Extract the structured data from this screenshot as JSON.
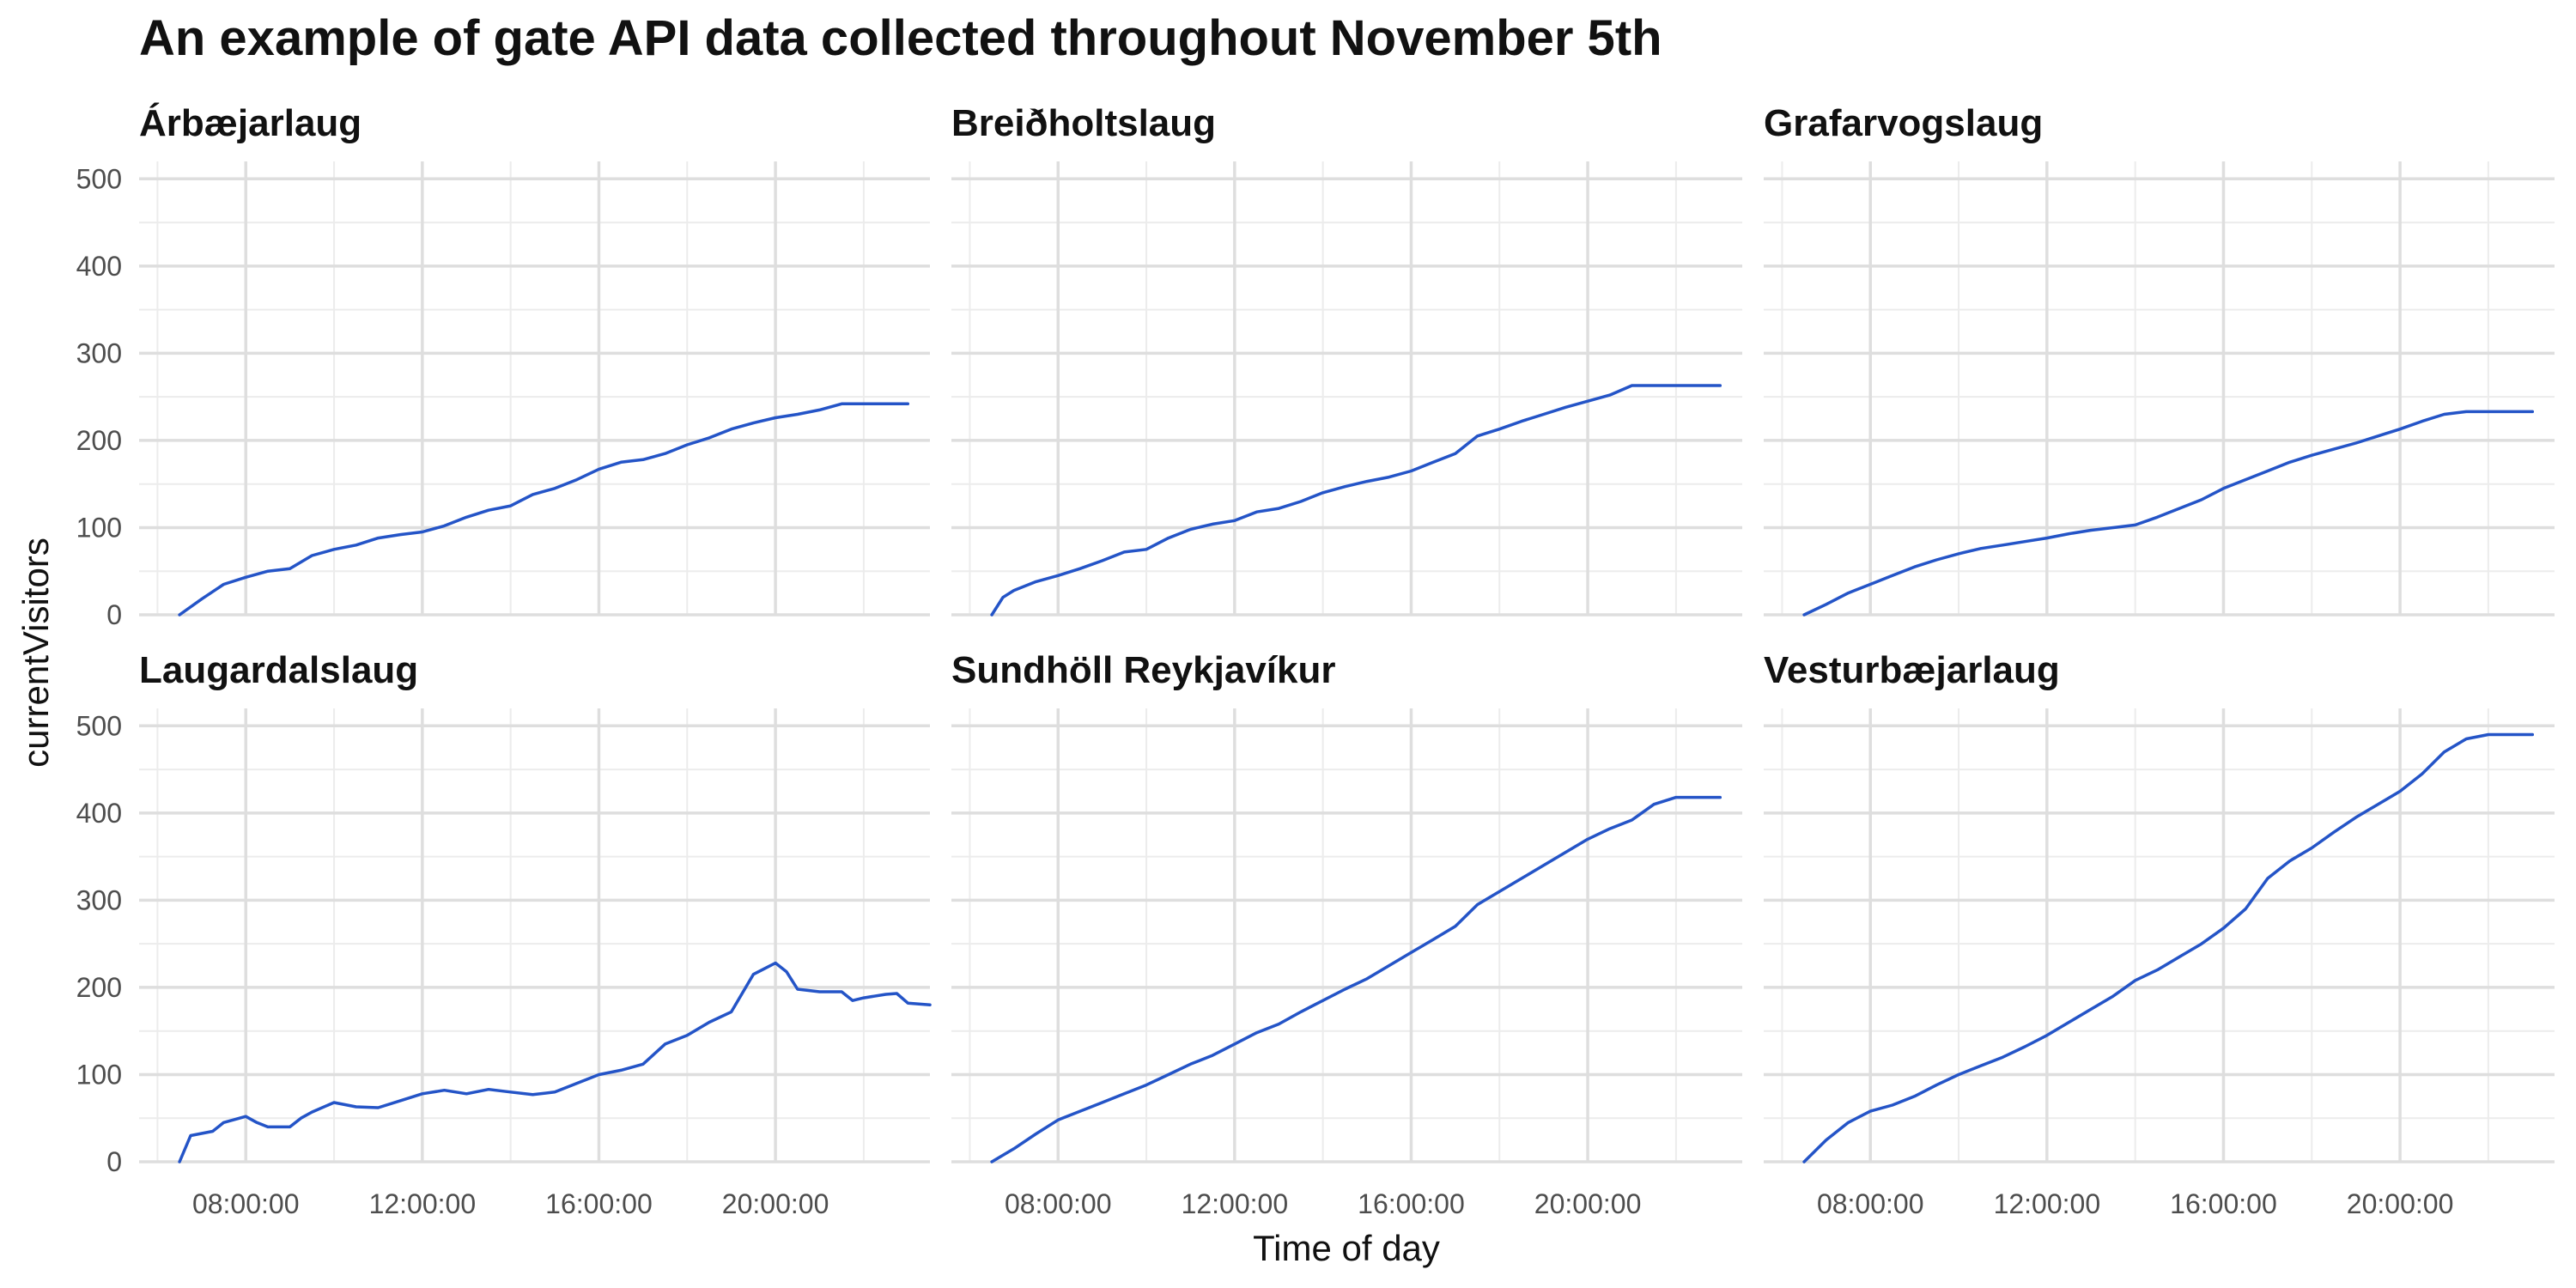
{
  "chart_data": {
    "type": "line",
    "title": "An example of gate API data collected throughout November 5th",
    "xlabel": "Time of day",
    "ylabel": "currentVisitors",
    "x_ticks": [
      "08:00:00",
      "12:00:00",
      "16:00:00",
      "20:00:00"
    ],
    "y_ticks": [
      0,
      100,
      200,
      300,
      400,
      500
    ],
    "xlim": [
      "05:35:00",
      "23:30:00"
    ],
    "ylim": [
      0,
      520
    ],
    "grid": true,
    "line_color": "#2454c7",
    "facets": [
      {
        "name": "Árbæjarlaug",
        "points": [
          [
            "06:30",
            0
          ],
          [
            "07:00",
            18
          ],
          [
            "07:30",
            35
          ],
          [
            "08:00",
            43
          ],
          [
            "08:30",
            50
          ],
          [
            "09:00",
            53
          ],
          [
            "09:30",
            68
          ],
          [
            "10:00",
            75
          ],
          [
            "10:30",
            80
          ],
          [
            "11:00",
            88
          ],
          [
            "11:30",
            92
          ],
          [
            "12:00",
            95
          ],
          [
            "12:30",
            102
          ],
          [
            "13:00",
            112
          ],
          [
            "13:30",
            120
          ],
          [
            "14:00",
            125
          ],
          [
            "14:30",
            138
          ],
          [
            "15:00",
            145
          ],
          [
            "15:30",
            155
          ],
          [
            "16:00",
            167
          ],
          [
            "16:30",
            175
          ],
          [
            "17:00",
            178
          ],
          [
            "17:30",
            185
          ],
          [
            "18:00",
            195
          ],
          [
            "18:30",
            203
          ],
          [
            "19:00",
            213
          ],
          [
            "19:30",
            220
          ],
          [
            "20:00",
            226
          ],
          [
            "20:30",
            230
          ],
          [
            "21:00",
            235
          ],
          [
            "21:30",
            242
          ],
          [
            "22:00",
            242
          ],
          [
            "23:00",
            242
          ]
        ]
      },
      {
        "name": "Breiðholtslaug",
        "points": [
          [
            "06:30",
            0
          ],
          [
            "06:45",
            20
          ],
          [
            "07:00",
            28
          ],
          [
            "07:30",
            38
          ],
          [
            "08:00",
            45
          ],
          [
            "08:30",
            53
          ],
          [
            "09:00",
            62
          ],
          [
            "09:30",
            72
          ],
          [
            "10:00",
            75
          ],
          [
            "10:30",
            88
          ],
          [
            "11:00",
            98
          ],
          [
            "11:30",
            104
          ],
          [
            "12:00",
            108
          ],
          [
            "12:30",
            118
          ],
          [
            "13:00",
            122
          ],
          [
            "13:30",
            130
          ],
          [
            "14:00",
            140
          ],
          [
            "14:30",
            147
          ],
          [
            "15:00",
            153
          ],
          [
            "15:30",
            158
          ],
          [
            "16:00",
            165
          ],
          [
            "16:30",
            175
          ],
          [
            "17:00",
            185
          ],
          [
            "17:30",
            205
          ],
          [
            "18:00",
            213
          ],
          [
            "18:30",
            222
          ],
          [
            "19:00",
            230
          ],
          [
            "19:30",
            238
          ],
          [
            "20:00",
            245
          ],
          [
            "20:30",
            252
          ],
          [
            "21:00",
            263
          ],
          [
            "22:00",
            263
          ],
          [
            "23:00",
            263
          ]
        ]
      },
      {
        "name": "Grafarvogslaug",
        "points": [
          [
            "06:30",
            0
          ],
          [
            "07:00",
            12
          ],
          [
            "07:30",
            25
          ],
          [
            "08:00",
            35
          ],
          [
            "08:30",
            45
          ],
          [
            "09:00",
            55
          ],
          [
            "09:30",
            63
          ],
          [
            "10:00",
            70
          ],
          [
            "10:30",
            76
          ],
          [
            "11:00",
            80
          ],
          [
            "11:30",
            84
          ],
          [
            "12:00",
            88
          ],
          [
            "12:30",
            93
          ],
          [
            "13:00",
            97
          ],
          [
            "13:30",
            100
          ],
          [
            "14:00",
            103
          ],
          [
            "14:30",
            112
          ],
          [
            "15:00",
            122
          ],
          [
            "15:30",
            132
          ],
          [
            "16:00",
            145
          ],
          [
            "16:30",
            155
          ],
          [
            "17:00",
            165
          ],
          [
            "17:30",
            175
          ],
          [
            "18:00",
            183
          ],
          [
            "18:30",
            190
          ],
          [
            "19:00",
            197
          ],
          [
            "19:30",
            205
          ],
          [
            "20:00",
            213
          ],
          [
            "20:30",
            222
          ],
          [
            "21:00",
            230
          ],
          [
            "21:30",
            233
          ],
          [
            "22:00",
            233
          ],
          [
            "23:00",
            233
          ]
        ]
      },
      {
        "name": "Laugardalslaug",
        "points": [
          [
            "06:30",
            0
          ],
          [
            "06:45",
            30
          ],
          [
            "07:15",
            35
          ],
          [
            "07:30",
            45
          ],
          [
            "08:00",
            52
          ],
          [
            "08:15",
            45
          ],
          [
            "08:30",
            40
          ],
          [
            "09:00",
            40
          ],
          [
            "09:15",
            50
          ],
          [
            "09:30",
            57
          ],
          [
            "10:00",
            68
          ],
          [
            "10:30",
            63
          ],
          [
            "11:00",
            62
          ],
          [
            "11:30",
            70
          ],
          [
            "12:00",
            78
          ],
          [
            "12:30",
            82
          ],
          [
            "13:00",
            78
          ],
          [
            "13:30",
            83
          ],
          [
            "14:00",
            80
          ],
          [
            "14:30",
            77
          ],
          [
            "15:00",
            80
          ],
          [
            "15:30",
            90
          ],
          [
            "16:00",
            100
          ],
          [
            "16:30",
            105
          ],
          [
            "17:00",
            112
          ],
          [
            "17:30",
            135
          ],
          [
            "18:00",
            145
          ],
          [
            "18:30",
            160
          ],
          [
            "19:00",
            172
          ],
          [
            "19:30",
            215
          ],
          [
            "20:00",
            228
          ],
          [
            "20:15",
            218
          ],
          [
            "20:30",
            198
          ],
          [
            "21:00",
            195
          ],
          [
            "21:30",
            195
          ],
          [
            "21:45",
            185
          ],
          [
            "22:00",
            188
          ],
          [
            "22:30",
            192
          ],
          [
            "22:45",
            193
          ],
          [
            "23:00",
            182
          ],
          [
            "23:30",
            180
          ]
        ]
      },
      {
        "name": "Sundhöll Reykjavíkur",
        "points": [
          [
            "06:30",
            0
          ],
          [
            "07:00",
            15
          ],
          [
            "07:30",
            32
          ],
          [
            "08:00",
            48
          ],
          [
            "08:30",
            58
          ],
          [
            "09:00",
            68
          ],
          [
            "09:30",
            78
          ],
          [
            "10:00",
            88
          ],
          [
            "10:30",
            100
          ],
          [
            "11:00",
            112
          ],
          [
            "11:30",
            122
          ],
          [
            "12:00",
            135
          ],
          [
            "12:30",
            148
          ],
          [
            "13:00",
            158
          ],
          [
            "13:30",
            172
          ],
          [
            "14:00",
            185
          ],
          [
            "14:30",
            198
          ],
          [
            "15:00",
            210
          ],
          [
            "15:30",
            225
          ],
          [
            "16:00",
            240
          ],
          [
            "16:30",
            255
          ],
          [
            "17:00",
            270
          ],
          [
            "17:30",
            295
          ],
          [
            "18:00",
            310
          ],
          [
            "18:30",
            325
          ],
          [
            "19:00",
            340
          ],
          [
            "19:30",
            355
          ],
          [
            "20:00",
            370
          ],
          [
            "20:30",
            382
          ],
          [
            "21:00",
            392
          ],
          [
            "21:30",
            410
          ],
          [
            "22:00",
            418
          ],
          [
            "23:00",
            418
          ]
        ]
      },
      {
        "name": "Vesturbæjarlaug",
        "points": [
          [
            "06:30",
            0
          ],
          [
            "07:00",
            25
          ],
          [
            "07:30",
            45
          ],
          [
            "08:00",
            58
          ],
          [
            "08:30",
            65
          ],
          [
            "09:00",
            75
          ],
          [
            "09:30",
            88
          ],
          [
            "10:00",
            100
          ],
          [
            "10:30",
            110
          ],
          [
            "11:00",
            120
          ],
          [
            "11:30",
            132
          ],
          [
            "12:00",
            145
          ],
          [
            "12:30",
            160
          ],
          [
            "13:00",
            175
          ],
          [
            "13:30",
            190
          ],
          [
            "14:00",
            208
          ],
          [
            "14:30",
            220
          ],
          [
            "15:00",
            235
          ],
          [
            "15:30",
            250
          ],
          [
            "16:00",
            268
          ],
          [
            "16:30",
            290
          ],
          [
            "17:00",
            325
          ],
          [
            "17:30",
            345
          ],
          [
            "18:00",
            360
          ],
          [
            "18:30",
            378
          ],
          [
            "19:00",
            395
          ],
          [
            "19:30",
            410
          ],
          [
            "20:00",
            425
          ],
          [
            "20:30",
            445
          ],
          [
            "21:00",
            470
          ],
          [
            "21:30",
            485
          ],
          [
            "22:00",
            490
          ],
          [
            "23:00",
            490
          ]
        ]
      }
    ]
  }
}
